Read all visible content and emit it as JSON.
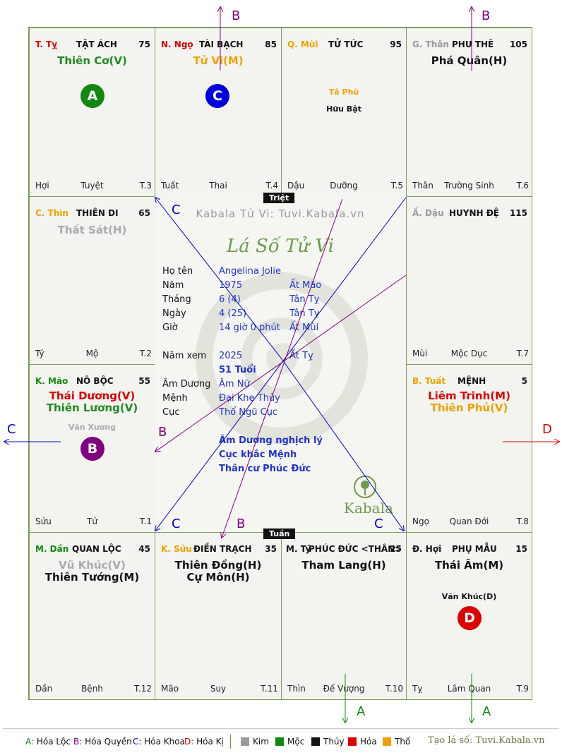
{
  "watermark": "Kabala Tử Vi: Tuvi.Kabala.vn",
  "chart_title": "Lá Số Tử Vi",
  "logo_text": "Kabala",
  "center_tags": {
    "top": "Triệt",
    "bottom": "Tuần"
  },
  "palaces": {
    "ty": {
      "can": "T. Tỵ",
      "name": "TẬT ÁCH",
      "num": "75",
      "main": [
        "Thiên Cơ(V)"
      ],
      "minor": [],
      "bl": "Hợi",
      "bc": "Tuyệt",
      "br": "T.3",
      "badge": "A"
    },
    "ngo": {
      "can": "N. Ngọ",
      "name": "TÀI BẠCH",
      "num": "85",
      "main": [
        "Tử Vi(M)"
      ],
      "minor": [],
      "bl": "Tuất",
      "bc": "Thai",
      "br": "T.4",
      "badge": "C"
    },
    "mui": {
      "can": "Q. Mùi",
      "name": "TỬ TỨC",
      "num": "95",
      "main": [],
      "minor": [
        "Tả Phù",
        "Hữu Bật"
      ],
      "bl": "Dậu",
      "bc": "Dưỡng",
      "br": "T.5"
    },
    "than": {
      "can": "G. Thân",
      "name": "PHU THÊ",
      "num": "105",
      "main": [
        "Phá Quân(H)"
      ],
      "minor": [],
      "bl": "Thân",
      "bc": "Trường Sinh",
      "br": "T.6"
    },
    "thin": {
      "can": "C. Thìn",
      "name": "THIÊN DI",
      "num": "65",
      "main": [
        "Thất Sát(H)"
      ],
      "minor": [],
      "bl": "Tý",
      "bc": "Mộ",
      "br": "T.2"
    },
    "dau": {
      "can": "Ấ. Dậu",
      "name": "HUYNH ĐỆ",
      "num": "115",
      "main": [],
      "minor": [],
      "bl": "Mùi",
      "bc": "Mộc Dục",
      "br": "T.7"
    },
    "mao": {
      "can": "K. Mão",
      "name": "NÔ BỘC",
      "num": "55",
      "main": [
        "Thái Dương(V)",
        "Thiên Lương(V)"
      ],
      "minor": [
        "Văn Xương"
      ],
      "bl": "Sửu",
      "bc": "Tử",
      "br": "T.1",
      "badge": "B"
    },
    "tuat": {
      "can": "B. Tuất",
      "name": "MỆNH",
      "num": "5",
      "main": [
        "Liêm Trinh(M)",
        "Thiên Phủ(V)"
      ],
      "minor": [],
      "bl": "Ngọ",
      "bc": "Quan Đới",
      "br": "T.8"
    },
    "dan": {
      "can": "M. Dần",
      "name": "QUAN LỘC",
      "num": "45",
      "main": [
        "Vũ Khúc(V)",
        "Thiên Tướng(M)"
      ],
      "minor": [],
      "bl": "Dần",
      "bc": "Bệnh",
      "br": "T.12"
    },
    "suu": {
      "can": "K. Sửu",
      "name": "ĐIỀN TRẠCH",
      "num": "35",
      "main": [
        "Thiên Đồng(H)",
        "Cự Môn(H)"
      ],
      "minor": [],
      "bl": "Mão",
      "bc": "Suy",
      "br": "T.11"
    },
    "ti": {
      "can": "M. Tý",
      "name": "PHÚC ĐỨC <THÂN>",
      "num": "25",
      "main": [
        "Tham Lang(H)"
      ],
      "minor": [],
      "bl": "Thìn",
      "bc": "Đế Vượng",
      "br": "T.10"
    },
    "hoi": {
      "can": "Đ. Hợi",
      "name": "PHỤ MẪU",
      "num": "15",
      "main": [
        "Thái Âm(M)"
      ],
      "minor": [
        "Văn Khúc(D)"
      ],
      "bl": "Tỵ",
      "bc": "Lâm Quan",
      "br": "T.9",
      "badge": "D"
    }
  },
  "info": {
    "ho_ten": {
      "label": "Họ tên",
      "value": "Angelina Jolie"
    },
    "nam": {
      "label": "Năm",
      "value": "1975",
      "extra": "Ất Mão"
    },
    "thang": {
      "label": "Tháng",
      "value": "6  (4)",
      "extra": "Tân Tỵ"
    },
    "ngay": {
      "label": "Ngày",
      "value": "4  (25)",
      "extra": "Tân Tỵ"
    },
    "gio": {
      "label": "Giờ",
      "value": "14 giờ 0 phút",
      "extra": "Ất Mùi"
    },
    "nam_xem": {
      "label": "Năm xem",
      "value": "2025",
      "extra": "Ất Tỵ"
    },
    "tuoi": "51 Tuổi",
    "am_duong": {
      "label": "Âm Dương",
      "value": "Âm Nữ"
    },
    "menh": {
      "label": "Mệnh",
      "value": "Đại Khe Thủy"
    },
    "cuc": {
      "label": "Cục",
      "value": "Thổ Ngũ Cục"
    },
    "notes": [
      "Âm Dương nghịch lý",
      "Cục khắc Mệnh",
      "Thân cư Phúc Đức"
    ]
  },
  "arrow_labels": {
    "a": "A",
    "b": "B",
    "c": "C",
    "d": "D"
  },
  "legend": {
    "a": "Hóa Lộc",
    "b": "Hóa Quyền",
    "c": "Hóa Khoa",
    "d": "Hóa Kị",
    "elements": [
      "Kim",
      "Mộc",
      "Thủy",
      "Hỏa",
      "Thổ"
    ],
    "site": "Tạo lá số: Tuvi.Kabala.vn"
  },
  "colors": {
    "grid": "#7e9a5e",
    "A": "#118811",
    "B": "#800080",
    "C": "#0000cc",
    "D": "#dd0000",
    "kim": "#999999",
    "moc": "#118811",
    "thuy": "#111111",
    "hoa": "#dd0000",
    "tho": "#f0a000"
  }
}
